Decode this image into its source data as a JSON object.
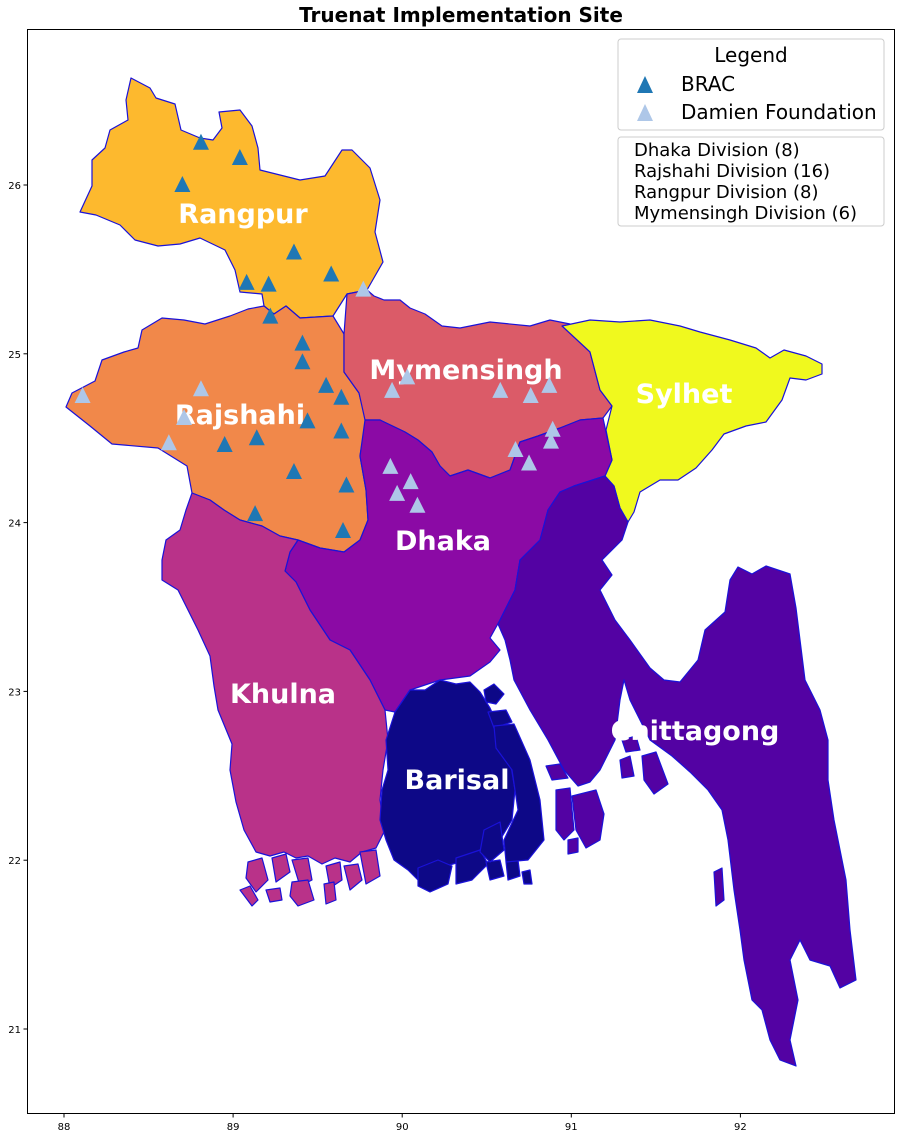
{
  "title": "Truenat Implementation Site",
  "axes": {
    "x_ticks": [
      {
        "value": 88,
        "label": "88"
      },
      {
        "value": 89,
        "label": "89"
      },
      {
        "value": 90,
        "label": "90"
      },
      {
        "value": 91,
        "label": "91"
      },
      {
        "value": 92,
        "label": "92"
      }
    ],
    "y_ticks": [
      {
        "value": 26,
        "label": "26"
      },
      {
        "value": 25,
        "label": "25"
      },
      {
        "value": 24,
        "label": "24"
      },
      {
        "value": 23,
        "label": "23"
      },
      {
        "value": 22,
        "label": "22"
      },
      {
        "value": 21,
        "label": "21"
      }
    ]
  },
  "divisions": [
    {
      "name": "Rangpur",
      "color": "#fdb92e"
    },
    {
      "name": "Rajshahi",
      "color": "#f1884a"
    },
    {
      "name": "Mymensingh",
      "color": "#db5b68"
    },
    {
      "name": "Sylhet",
      "color": "#f0f91e"
    },
    {
      "name": "Dhaka",
      "color": "#8b0aa5"
    },
    {
      "name": "Khulna",
      "color": "#b93289"
    },
    {
      "name": "Chittagong",
      "color": "#5302a3"
    },
    {
      "name": "Barisal",
      "color": "#0d0887"
    }
  ],
  "legend": {
    "title": "Legend",
    "entries": [
      {
        "label": "BRAC",
        "color": "#1f77b4",
        "marker": "triangle"
      },
      {
        "label": "Damien Foundation",
        "color": "#aec7e8",
        "marker": "triangle"
      }
    ]
  },
  "division_counts": [
    "Dhaka Division (8)",
    "Rajshahi Division (16)",
    "Rangpur Division (8)",
    "Mymensingh Division (6)"
  ],
  "sites": {
    "BRAC": [
      [
        88.81,
        26.25
      ],
      [
        89.04,
        26.16
      ],
      [
        88.7,
        26.0
      ],
      [
        89.36,
        25.6
      ],
      [
        89.58,
        25.47
      ],
      [
        89.08,
        25.42
      ],
      [
        89.21,
        25.41
      ],
      [
        89.22,
        25.22
      ],
      [
        89.41,
        25.06
      ],
      [
        89.41,
        24.95
      ],
      [
        89.55,
        24.81
      ],
      [
        89.64,
        24.74
      ],
      [
        89.44,
        24.6
      ],
      [
        89.64,
        24.54
      ],
      [
        89.14,
        24.5
      ],
      [
        88.95,
        24.46
      ],
      [
        89.36,
        24.3
      ],
      [
        89.67,
        24.22
      ],
      [
        89.13,
        24.05
      ],
      [
        89.65,
        23.95
      ]
    ],
    "Damien Foundation": [
      [
        88.11,
        24.75
      ],
      [
        88.81,
        24.79
      ],
      [
        88.71,
        24.62
      ],
      [
        88.62,
        24.47
      ],
      [
        89.77,
        25.38
      ],
      [
        90.03,
        24.86
      ],
      [
        89.94,
        24.78
      ],
      [
        90.58,
        24.78
      ],
      [
        90.76,
        24.75
      ],
      [
        90.87,
        24.81
      ],
      [
        89.93,
        24.33
      ],
      [
        90.05,
        24.24
      ],
      [
        89.97,
        24.17
      ],
      [
        90.09,
        24.1
      ],
      [
        90.67,
        24.43
      ],
      [
        90.75,
        24.35
      ],
      [
        90.88,
        24.48
      ],
      [
        90.89,
        24.55
      ]
    ]
  }
}
